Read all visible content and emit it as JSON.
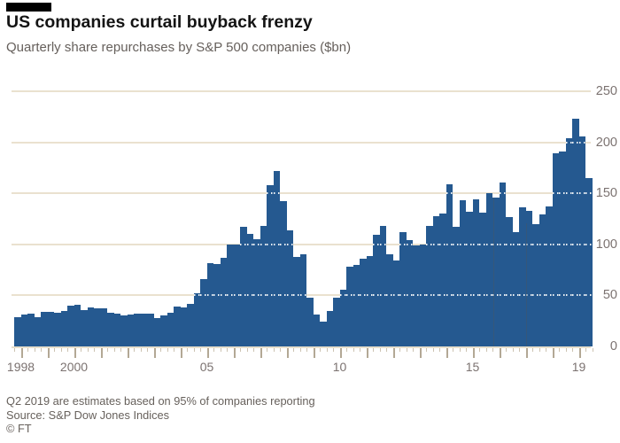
{
  "header": {
    "title": "US companies curtail buyback frenzy",
    "subtitle": "Quarterly share repurchases by S&P 500 companies ($bn)"
  },
  "footer": {
    "note": "Q2 2019 are estimates based on 95% of companies reporting",
    "source": "Source: S&P Dow Jones Indices",
    "credit": "© FT"
  },
  "chart_data": {
    "type": "bar",
    "title": "US companies curtail buyback frenzy",
    "subtitle": "Quarterly share repurchases by S&P 500 companies ($bn)",
    "unit": "$bn",
    "ylim": [
      0,
      250
    ],
    "y_ticks": [
      0,
      50,
      100,
      150,
      200,
      250
    ],
    "grid": true,
    "legend": false,
    "x_start": "1997 Q4",
    "x_end": "2019 Q2",
    "x_year_tick_range": [
      1998,
      2019
    ],
    "x_tick_labels": [
      {
        "year": 1998,
        "label": "1998"
      },
      {
        "year": 2000,
        "label": "2000"
      },
      {
        "year": 2005,
        "label": "05"
      },
      {
        "year": 2010,
        "label": "10"
      },
      {
        "year": 2015,
        "label": "15"
      },
      {
        "year": 2019,
        "label": "19"
      }
    ],
    "bar_color": "#255990",
    "gridline_color": "#eae1cf",
    "values_bn": [
      29,
      31,
      32,
      29,
      34,
      34,
      33,
      35,
      40,
      41,
      36,
      38,
      37,
      37,
      33,
      32,
      30,
      31,
      32,
      32,
      32,
      28,
      30,
      33,
      39,
      38,
      42,
      52,
      66,
      82,
      81,
      87,
      100,
      100,
      117,
      110,
      105,
      118,
      158,
      172,
      142,
      114,
      88,
      90,
      48,
      31,
      24,
      35,
      48,
      56,
      78,
      80,
      86,
      89,
      109,
      118,
      90,
      84,
      112,
      104,
      99,
      100,
      118,
      128,
      130,
      159,
      117,
      143,
      132,
      144,
      131,
      150,
      146,
      161,
      127,
      112,
      136,
      133,
      120,
      129,
      137,
      189,
      191,
      204,
      223,
      206,
      165
    ]
  }
}
